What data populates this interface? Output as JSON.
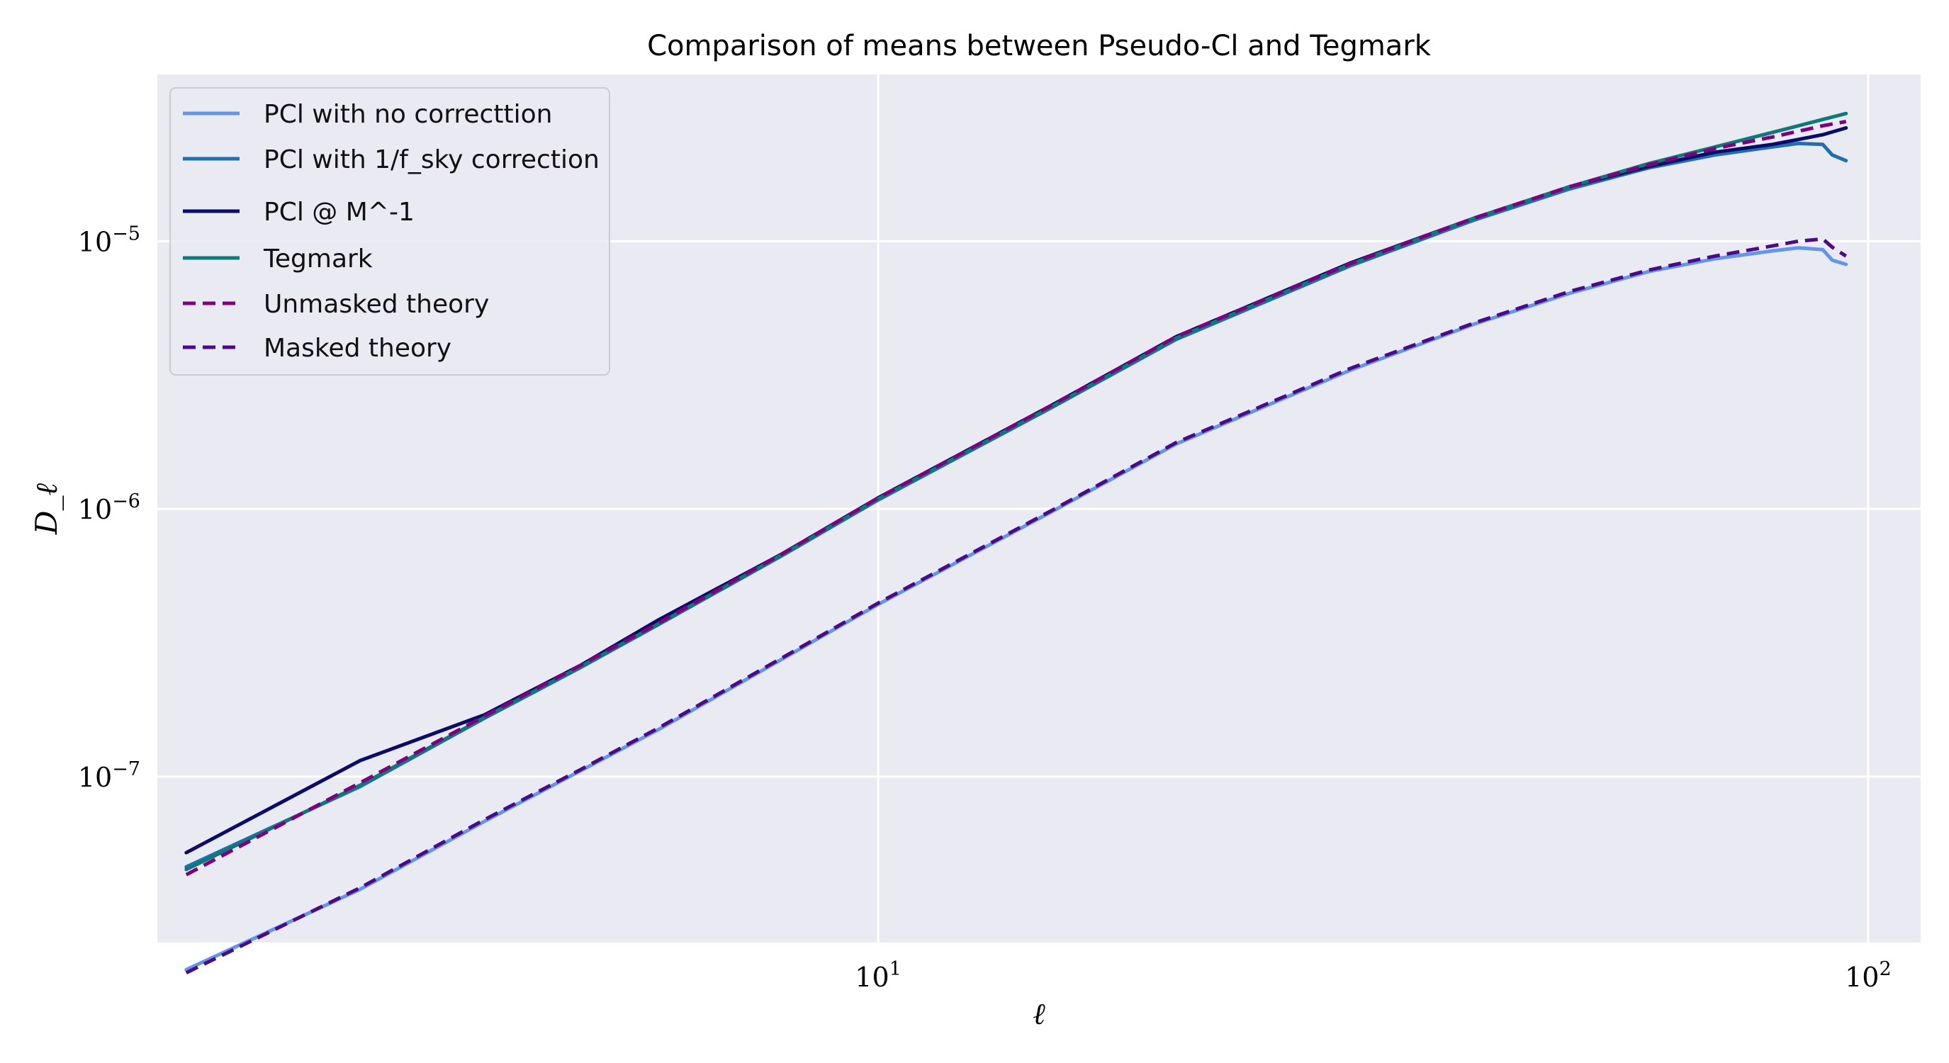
{
  "chart_data": {
    "type": "line",
    "title": "Comparison of means between Pseudo-Cl and Tegmark",
    "xlabel": "ℓ",
    "ylabel": "D_ℓ",
    "xscale": "log",
    "yscale": "log",
    "xlim": [
      1.87,
      113
    ],
    "ylim": [
      2.4e-08,
      4.2e-05
    ],
    "grid": true,
    "legend_position": "top-left",
    "x_ticks": [
      {
        "value": 10,
        "base": "10",
        "exp": "1"
      },
      {
        "value": 100,
        "base": "10",
        "exp": "2"
      }
    ],
    "y_ticks": [
      {
        "value": 1e-07,
        "base": "10",
        "exp": "−7"
      },
      {
        "value": 1e-06,
        "base": "10",
        "exp": "−6"
      },
      {
        "value": 1e-05,
        "base": "10",
        "exp": "−5"
      }
    ],
    "series": [
      {
        "name": "PCl with no correcttion",
        "color": "#6495ED",
        "dash": "solid",
        "points": [
          [
            2,
            1.9e-08
          ],
          [
            3,
            3.8e-08
          ],
          [
            4,
            6.8e-08
          ],
          [
            5,
            1.05e-07
          ],
          [
            6,
            1.5e-07
          ],
          [
            8,
            2.75e-07
          ],
          [
            10,
            4.4e-07
          ],
          [
            15,
            9.8e-07
          ],
          [
            20,
            1.75e-06
          ],
          [
            30,
            3.3e-06
          ],
          [
            40,
            4.9e-06
          ],
          [
            50,
            6.4e-06
          ],
          [
            60,
            7.7e-06
          ],
          [
            70,
            8.6e-06
          ],
          [
            80,
            9.2e-06
          ],
          [
            85,
            9.45e-06
          ],
          [
            90,
            9.3e-06
          ],
          [
            92,
            8.5e-06
          ],
          [
            95,
            8.2e-06
          ]
        ]
      },
      {
        "name": "PCl with 1/f_sky correction",
        "color": "#1f6fb4",
        "dash": "solid",
        "points": [
          [
            2,
            4.6e-08
          ],
          [
            3,
            9.2e-08
          ],
          [
            4,
            1.65e-07
          ],
          [
            5,
            2.55e-07
          ],
          [
            6,
            3.7e-07
          ],
          [
            8,
            6.7e-07
          ],
          [
            10,
            1.08e-06
          ],
          [
            15,
            2.4e-06
          ],
          [
            20,
            4.3e-06
          ],
          [
            30,
            8.1e-06
          ],
          [
            40,
            1.2e-05
          ],
          [
            50,
            1.57e-05
          ],
          [
            60,
            1.88e-05
          ],
          [
            70,
            2.1e-05
          ],
          [
            80,
            2.25e-05
          ],
          [
            85,
            2.32e-05
          ],
          [
            90,
            2.3e-05
          ],
          [
            92,
            2.1e-05
          ],
          [
            95,
            2e-05
          ]
        ]
      },
      {
        "name": "PCl @ M^-1",
        "color": "#0b0b6b",
        "dash": "solid",
        "points": [
          [
            2,
            5.2e-08
          ],
          [
            3,
            1.15e-07
          ],
          [
            4,
            1.7e-07
          ],
          [
            5,
            2.6e-07
          ],
          [
            6,
            3.85e-07
          ],
          [
            8,
            6.8e-07
          ],
          [
            10,
            1.1e-06
          ],
          [
            15,
            2.45e-06
          ],
          [
            20,
            4.4e-06
          ],
          [
            30,
            8.3e-06
          ],
          [
            40,
            1.22e-05
          ],
          [
            50,
            1.6e-05
          ],
          [
            60,
            1.9e-05
          ],
          [
            70,
            2.15e-05
          ],
          [
            80,
            2.3e-05
          ],
          [
            85,
            2.4e-05
          ],
          [
            90,
            2.5e-05
          ],
          [
            95,
            2.65e-05
          ]
        ]
      },
      {
        "name": "Tegmark",
        "color": "#0d7a7a",
        "dash": "solid",
        "points": [
          [
            2,
            4.5e-08
          ],
          [
            3,
            9.3e-08
          ],
          [
            4,
            1.66e-07
          ],
          [
            5,
            2.57e-07
          ],
          [
            6,
            3.72e-07
          ],
          [
            8,
            6.75e-07
          ],
          [
            10,
            1.09e-06
          ],
          [
            15,
            2.42e-06
          ],
          [
            20,
            4.35e-06
          ],
          [
            30,
            8.2e-06
          ],
          [
            40,
            1.22e-05
          ],
          [
            50,
            1.6e-05
          ],
          [
            60,
            1.95e-05
          ],
          [
            70,
            2.25e-05
          ],
          [
            80,
            2.55e-05
          ],
          [
            90,
            2.85e-05
          ],
          [
            95,
            3e-05
          ]
        ]
      },
      {
        "name": "Unmasked theory",
        "color": "#800080",
        "dash": "dashed",
        "points": [
          [
            2,
            4.3e-08
          ],
          [
            3,
            9.5e-08
          ],
          [
            4,
            1.68e-07
          ],
          [
            5,
            2.6e-07
          ],
          [
            6,
            3.75e-07
          ],
          [
            8,
            6.8e-07
          ],
          [
            10,
            1.1e-06
          ],
          [
            15,
            2.45e-06
          ],
          [
            20,
            4.4e-06
          ],
          [
            30,
            8.25e-06
          ],
          [
            40,
            1.22e-05
          ],
          [
            50,
            1.6e-05
          ],
          [
            60,
            1.93e-05
          ],
          [
            70,
            2.22e-05
          ],
          [
            80,
            2.45e-05
          ],
          [
            90,
            2.7e-05
          ],
          [
            95,
            2.8e-05
          ]
        ]
      },
      {
        "name": "Masked theory",
        "color": "#4b0a8a",
        "dash": "dashed",
        "points": [
          [
            2,
            1.85e-08
          ],
          [
            3,
            3.85e-08
          ],
          [
            4,
            6.9e-08
          ],
          [
            5,
            1.06e-07
          ],
          [
            6,
            1.52e-07
          ],
          [
            8,
            2.78e-07
          ],
          [
            10,
            4.45e-07
          ],
          [
            15,
            9.9e-07
          ],
          [
            20,
            1.77e-06
          ],
          [
            30,
            3.35e-06
          ],
          [
            40,
            4.95e-06
          ],
          [
            50,
            6.5e-06
          ],
          [
            60,
            7.8e-06
          ],
          [
            70,
            8.8e-06
          ],
          [
            80,
            9.6e-06
          ],
          [
            85,
            1e-05
          ],
          [
            90,
            1.02e-05
          ],
          [
            92,
            9.5e-06
          ],
          [
            95,
            8.8e-06
          ]
        ]
      }
    ]
  }
}
